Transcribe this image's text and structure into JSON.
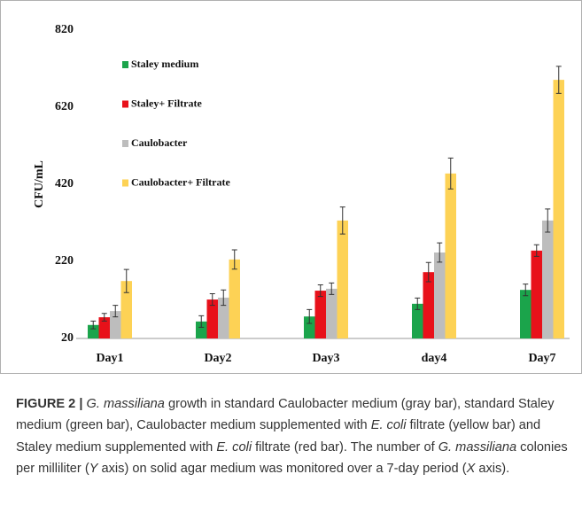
{
  "chart_data": {
    "type": "bar",
    "ylabel": "CFU/mL",
    "categories": [
      "Day1",
      "Day2",
      "Day3",
      "day4",
      "Day7"
    ],
    "series": [
      {
        "name": "Staley medium",
        "color": "#1ba44b",
        "values": [
          55,
          64,
          77,
          110,
          146
        ],
        "errors": [
          10,
          15,
          18,
          15,
          15
        ]
      },
      {
        "name": "Staley+ Filtrate",
        "color": "#e8111a",
        "values": [
          75,
          121,
          144,
          192,
          248
        ],
        "errors": [
          10,
          15,
          15,
          25,
          15
        ]
      },
      {
        "name": "Caulobacter",
        "color": "#bdbdbd",
        "values": [
          91,
          126,
          149,
          243,
          326
        ],
        "errors": [
          15,
          20,
          15,
          25,
          30
        ]
      },
      {
        "name": "Caulobacter+ Filtrate",
        "color": "#fdd255",
        "values": [
          169,
          225,
          326,
          448,
          691
        ],
        "errors": [
          30,
          25,
          35,
          40,
          35
        ]
      }
    ],
    "ylim": [
      20,
      820
    ],
    "yticks": [
      20,
      220,
      420,
      620,
      820
    ]
  },
  "caption": {
    "label": "FIGURE 2 |",
    "parts": [
      {
        "text": "G. massiliana",
        "italic": true
      },
      {
        "text": " growth in standard Caulobacter medium (gray bar), standard Staley medium (green bar), Caulobacter medium supplemented with ",
        "italic": false
      },
      {
        "text": "E. coli",
        "italic": true
      },
      {
        "text": " filtrate (yellow bar) and Staley medium supplemented with ",
        "italic": false
      },
      {
        "text": "E. coli",
        "italic": true
      },
      {
        "text": " filtrate (red bar). The number of ",
        "italic": false
      },
      {
        "text": "G. massiliana",
        "italic": true
      },
      {
        "text": " colonies per milliliter (",
        "italic": false
      },
      {
        "text": "Y",
        "italic": true
      },
      {
        "text": " axis) on solid agar medium was monitored over a 7-day period (",
        "italic": false
      },
      {
        "text": "X",
        "italic": true
      },
      {
        "text": " axis).",
        "italic": false
      }
    ]
  }
}
